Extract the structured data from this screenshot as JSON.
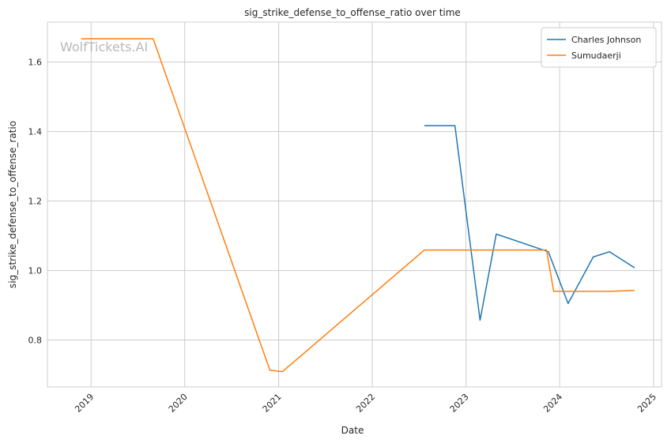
{
  "chart_data": {
    "type": "line",
    "title": "sig_strike_defense_to_offense_ratio over time",
    "xlabel": "Date",
    "ylabel": "sig_strike_defense_to_offense_ratio",
    "watermark": "WolfTickets.AI",
    "x_ticks": [
      "2019",
      "2020",
      "2021",
      "2022",
      "2023",
      "2024",
      "2025"
    ],
    "y_ticks": [
      "0.8",
      "1.0",
      "1.2",
      "1.4",
      "1.6"
    ],
    "xlim": [
      "2018-07-15",
      "2025-02-01"
    ],
    "ylim": [
      0.665,
      1.715
    ],
    "grid": true,
    "legend_position": "top-right",
    "series": [
      {
        "name": "Charles Johnson",
        "color": "#1f77b4",
        "points": [
          [
            "2022-07-23",
            1.417
          ],
          [
            "2022-11-19",
            1.417
          ],
          [
            "2023-02-25",
            0.857
          ],
          [
            "2023-04-29",
            1.105
          ],
          [
            "2023-11-18",
            1.054
          ],
          [
            "2024-02-03",
            0.905
          ],
          [
            "2024-05-11",
            1.039
          ],
          [
            "2024-07-13",
            1.054
          ],
          [
            "2024-10-19",
            1.008
          ]
        ]
      },
      {
        "name": "Sumudaerji",
        "color": "#ff7f0e",
        "points": [
          [
            "2018-11-24",
            1.667
          ],
          [
            "2019-08-31",
            1.667
          ],
          [
            "2020-11-28",
            0.713
          ],
          [
            "2021-01-16",
            0.709
          ],
          [
            "2022-07-23",
            1.059
          ],
          [
            "2023-11-11",
            1.059
          ],
          [
            "2023-12-09",
            0.94
          ],
          [
            "2024-07-13",
            0.94
          ],
          [
            "2024-10-19",
            0.943
          ]
        ]
      }
    ]
  }
}
